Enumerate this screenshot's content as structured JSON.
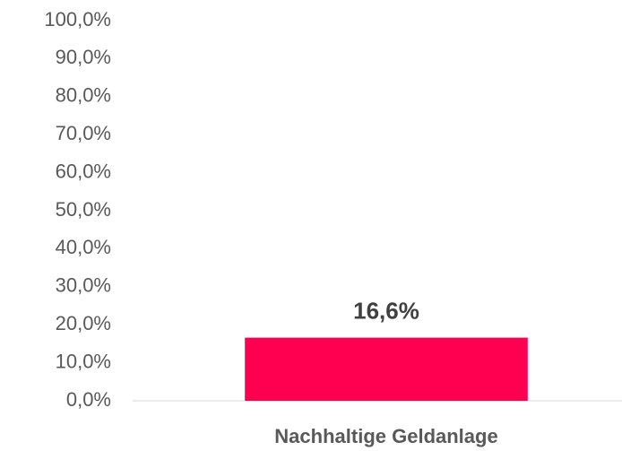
{
  "chart_data": {
    "type": "bar",
    "categories": [
      "Nachhaltige Geldanlage"
    ],
    "values": [
      16.6
    ],
    "value_labels": [
      "16,6%"
    ],
    "color": "#ff0050",
    "ylim": [
      0,
      100
    ],
    "yticks": [
      {
        "value": 0,
        "label": "0,0%"
      },
      {
        "value": 10,
        "label": "10,0%"
      },
      {
        "value": 20,
        "label": "20,0%"
      },
      {
        "value": 30,
        "label": "30,0%"
      },
      {
        "value": 40,
        "label": "40,0%"
      },
      {
        "value": 50,
        "label": "50,0%"
      },
      {
        "value": 60,
        "label": "60,0%"
      },
      {
        "value": 70,
        "label": "70,0%"
      },
      {
        "value": 80,
        "label": "80,0%"
      },
      {
        "value": 90,
        "label": "90,0%"
      },
      {
        "value": 100,
        "label": "100,0%"
      }
    ],
    "grid": false
  }
}
